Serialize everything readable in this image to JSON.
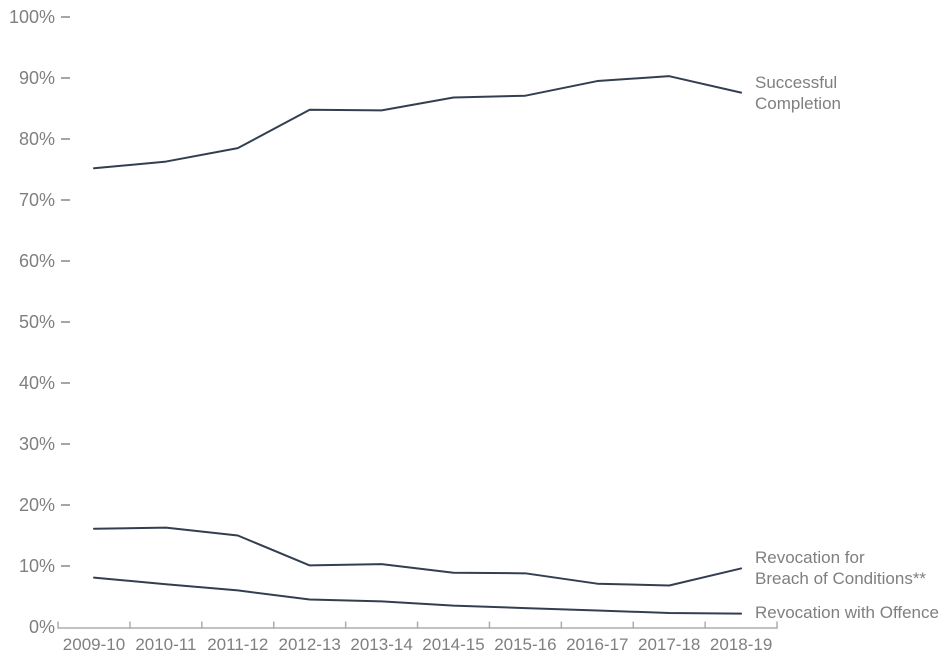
{
  "chart_data": {
    "type": "line",
    "title": "",
    "xlabel": "",
    "ylabel": "",
    "grid": false,
    "legend_position": "right-of-line-ends",
    "categories": [
      "2009-10",
      "2010-11",
      "2011-12",
      "2012-13",
      "2013-14",
      "2014-15",
      "2015-16",
      "2016-17",
      "2017-18",
      "2018-19"
    ],
    "series": [
      {
        "name": "Successful Completion",
        "label_lines": [
          "Successful",
          "Completion"
        ],
        "values": [
          75.2,
          76.3,
          78.5,
          84.8,
          84.7,
          86.8,
          87.1,
          89.5,
          90.3,
          87.6
        ]
      },
      {
        "name": "Revocation for Breach of Conditions**",
        "label_lines": [
          "Revocation for",
          "Breach of Conditions**"
        ],
        "values": [
          16.1,
          16.3,
          15.0,
          10.1,
          10.3,
          8.9,
          8.8,
          7.1,
          6.8,
          9.6
        ]
      },
      {
        "name": "Revocation with Offence",
        "label_lines": [
          "Revocation with Offence"
        ],
        "values": [
          8.1,
          7.0,
          6.0,
          4.5,
          4.2,
          3.5,
          3.1,
          2.7,
          2.3,
          2.2
        ]
      }
    ],
    "y_axis": {
      "min": 0,
      "max": 100,
      "step": 10,
      "tick_labels": [
        "0%",
        "10%",
        "20%",
        "30%",
        "40%",
        "50%",
        "60%",
        "70%",
        "80%",
        "90%",
        "100%"
      ]
    },
    "colors": {
      "line": "#333F50",
      "axis_text": "#7F7F7F",
      "axis_line": "#ADADAD",
      "tick_dash": "#A6A6A6",
      "background": "#FFFFFF"
    }
  }
}
